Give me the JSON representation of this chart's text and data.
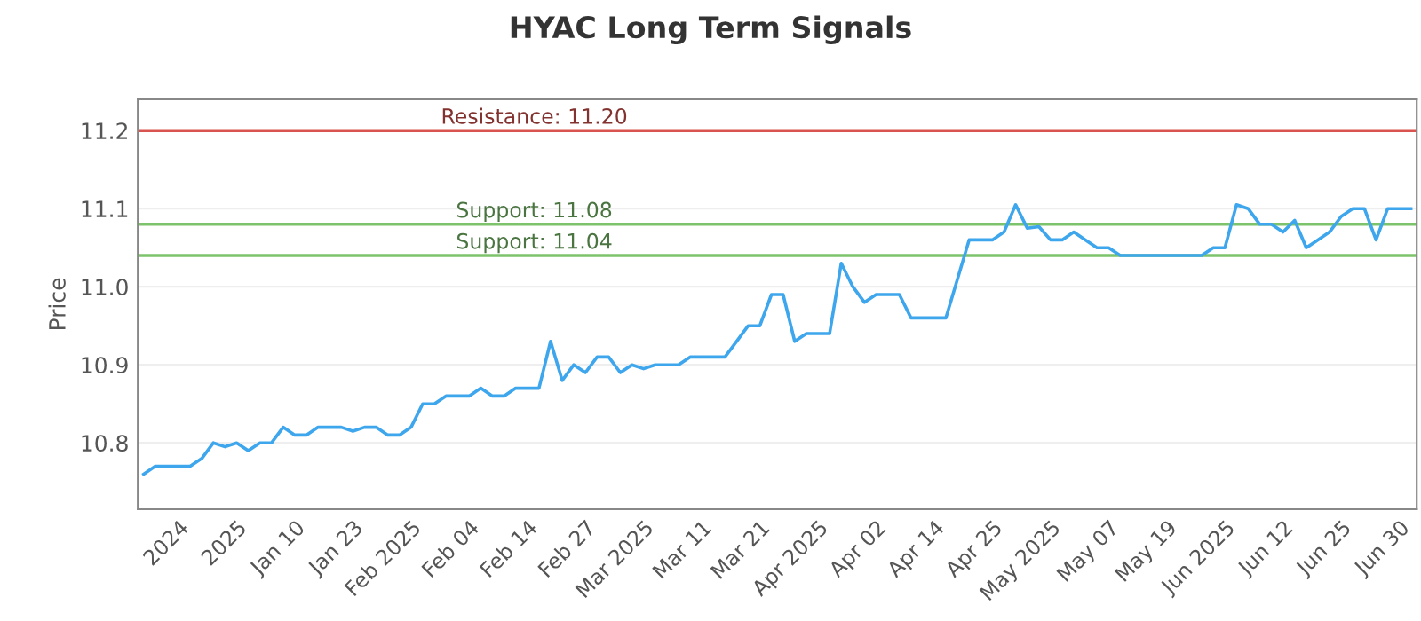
{
  "chart_data": {
    "type": "line",
    "title": "HYAC Long Term Signals",
    "ylabel": "Price",
    "categories": [
      null,
      null,
      null,
      "2024",
      null,
      null,
      null,
      null,
      "2025",
      null,
      null,
      null,
      null,
      "Jan 10",
      null,
      null,
      null,
      null,
      "Jan 23",
      null,
      null,
      null,
      null,
      "Feb 2025",
      null,
      null,
      null,
      null,
      "Feb 04",
      null,
      null,
      null,
      null,
      "Feb 14",
      null,
      null,
      null,
      null,
      "Feb 27",
      null,
      null,
      null,
      null,
      "Mar 2025",
      null,
      null,
      null,
      null,
      "Mar 11",
      null,
      null,
      null,
      null,
      "Mar 21",
      null,
      null,
      null,
      null,
      "Apr 2025",
      null,
      null,
      null,
      null,
      "Apr 02",
      null,
      null,
      null,
      null,
      "Apr 14",
      null,
      null,
      null,
      null,
      "Apr 25",
      null,
      null,
      null,
      null,
      "May 2025",
      null,
      null,
      null,
      null,
      "May 07",
      null,
      null,
      null,
      null,
      "May 19",
      null,
      null,
      null,
      null,
      "Jun 2025",
      null,
      null,
      null,
      null,
      "Jun 12",
      null,
      null,
      null,
      null,
      "Jun 25",
      null,
      null,
      null,
      null,
      "Jun 30",
      null
    ],
    "series": [
      {
        "color": "#3ea6ec",
        "values": [
          10.76,
          10.77,
          10.77,
          10.77,
          10.77,
          10.78,
          10.8,
          10.795,
          10.8,
          10.79,
          10.8,
          10.8,
          10.82,
          10.81,
          10.81,
          10.82,
          10.82,
          10.82,
          10.815,
          10.82,
          10.82,
          10.81,
          10.81,
          10.82,
          10.85,
          10.85,
          10.86,
          10.86,
          10.86,
          10.87,
          10.86,
          10.86,
          10.87,
          10.87,
          10.87,
          10.93,
          10.88,
          10.9,
          10.89,
          10.91,
          10.91,
          10.89,
          10.9,
          10.895,
          10.9,
          10.9,
          10.9,
          10.91,
          10.91,
          10.91,
          10.91,
          10.93,
          10.95,
          10.95,
          10.99,
          10.99,
          10.93,
          10.94,
          10.94,
          10.94,
          11.03,
          11.0,
          10.98,
          10.99,
          10.99,
          10.99,
          10.96,
          10.96,
          10.96,
          10.96,
          11.01,
          11.06,
          11.06,
          11.06,
          11.07,
          11.105,
          11.075,
          11.077,
          11.06,
          11.06,
          11.07,
          11.06,
          11.05,
          11.05,
          11.04,
          11.04,
          11.04,
          11.04,
          11.04,
          11.04,
          11.04,
          11.04,
          11.05,
          11.05,
          11.105,
          11.1,
          11.08,
          11.08,
          11.07,
          11.085,
          11.05,
          11.06,
          11.07,
          11.09,
          11.1,
          11.1,
          11.06,
          11.1,
          11.1,
          11.1
        ]
      }
    ],
    "ylim": [
      10.715,
      11.24
    ],
    "yticks": [
      10.8,
      10.9,
      {
        "value": 11.0,
        "label": "11.0"
      },
      11.1,
      11.2
    ],
    "grid": "y",
    "marker": "none",
    "line_style": "solid",
    "ref_lines": [
      {
        "axis": "y",
        "value": 11.2,
        "label": "Resistance: 11.20",
        "color": "#d9534f"
      },
      {
        "axis": "y",
        "value": 11.08,
        "label": "Support: 11.08",
        "color": "#7cc36b"
      },
      {
        "axis": "y",
        "value": 11.04,
        "label": "Support: 11.04",
        "color": "#7cc36b"
      }
    ]
  }
}
